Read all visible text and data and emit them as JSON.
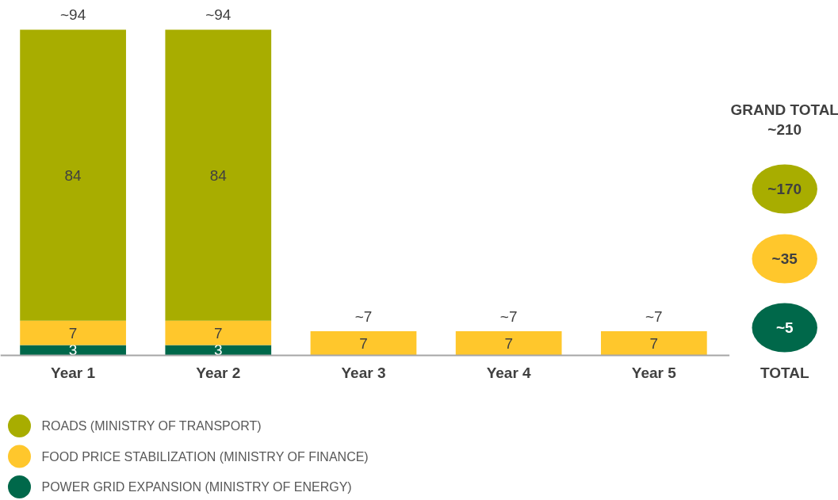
{
  "chart_data": {
    "type": "bar",
    "stacked": true,
    "data_labels": true,
    "legend": "bottom left",
    "grid": false,
    "categories": [
      "Year 1",
      "Year 2",
      "Year 3",
      "Year 4",
      "Year 5"
    ],
    "series": [
      {
        "name": "POWER GRID EXPANSION (MINISTRY OF ENERGY)",
        "color": "#00684a",
        "values": [
          3,
          3,
          null,
          null,
          null
        ]
      },
      {
        "name": "FOOD PRICE STABILIZATION (MINISTRY OF FINANCE)",
        "color": "#ffc72c",
        "values": [
          7,
          7,
          7,
          7,
          7
        ]
      },
      {
        "name": "ROADS (MINISTRY OF TRANSPORT)",
        "color": "#a8ad00",
        "values": [
          84,
          84,
          null,
          null,
          null
        ]
      }
    ],
    "totals": [
      "~94",
      "~94",
      "~7",
      "~7",
      "~7"
    ],
    "annotations": [
      "GRAND TOTAL",
      "~210",
      "~170",
      "~35",
      "~5",
      "TOTAL"
    ]
  }
}
